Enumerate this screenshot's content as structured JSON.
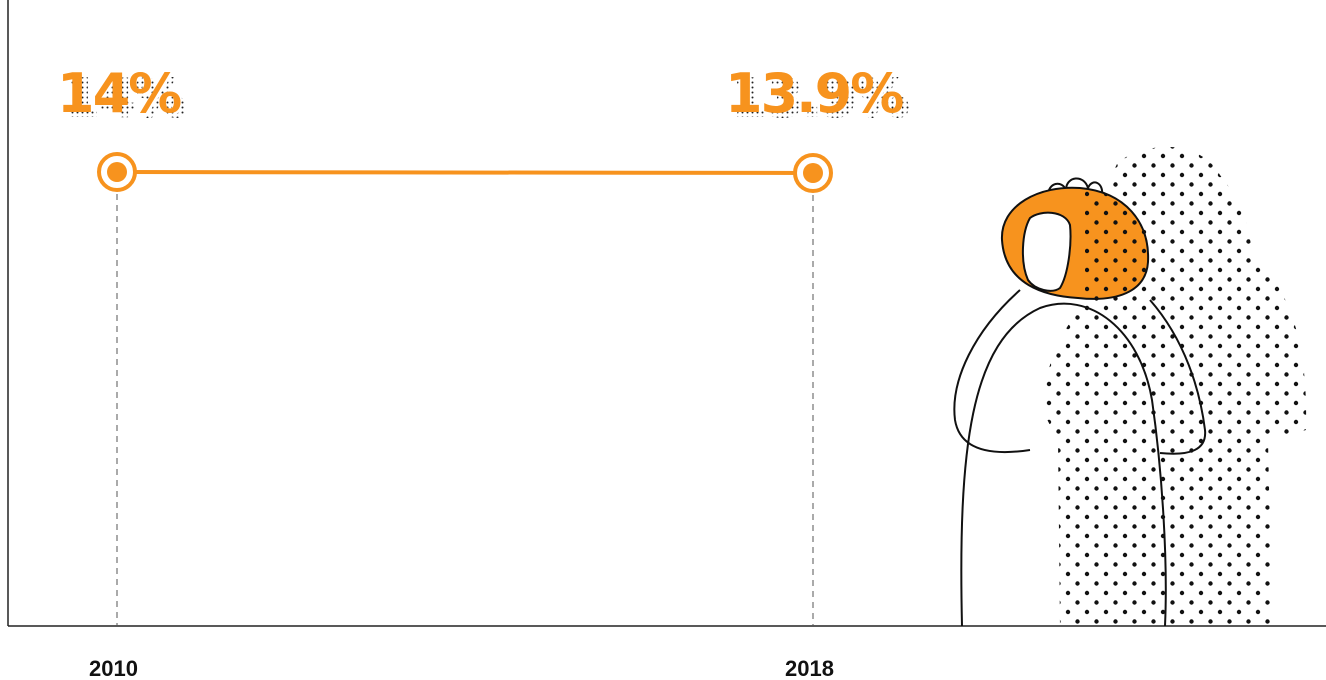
{
  "chart_data": {
    "type": "line",
    "title": "",
    "xlabel": "",
    "ylabel": "",
    "categories": [
      "2010",
      "2018"
    ],
    "series": [
      {
        "values": [
          14,
          13.9
        ]
      }
    ],
    "data_labels": [
      "14%",
      "13.9%"
    ],
    "ylim": [
      0,
      15
    ],
    "grid": false,
    "legend": "none"
  },
  "colors": {
    "accent": "#f7931e",
    "axis": "#222222",
    "dots": "#111111"
  },
  "illustration": {
    "icon": "person-with-hands-on-face-icon"
  }
}
